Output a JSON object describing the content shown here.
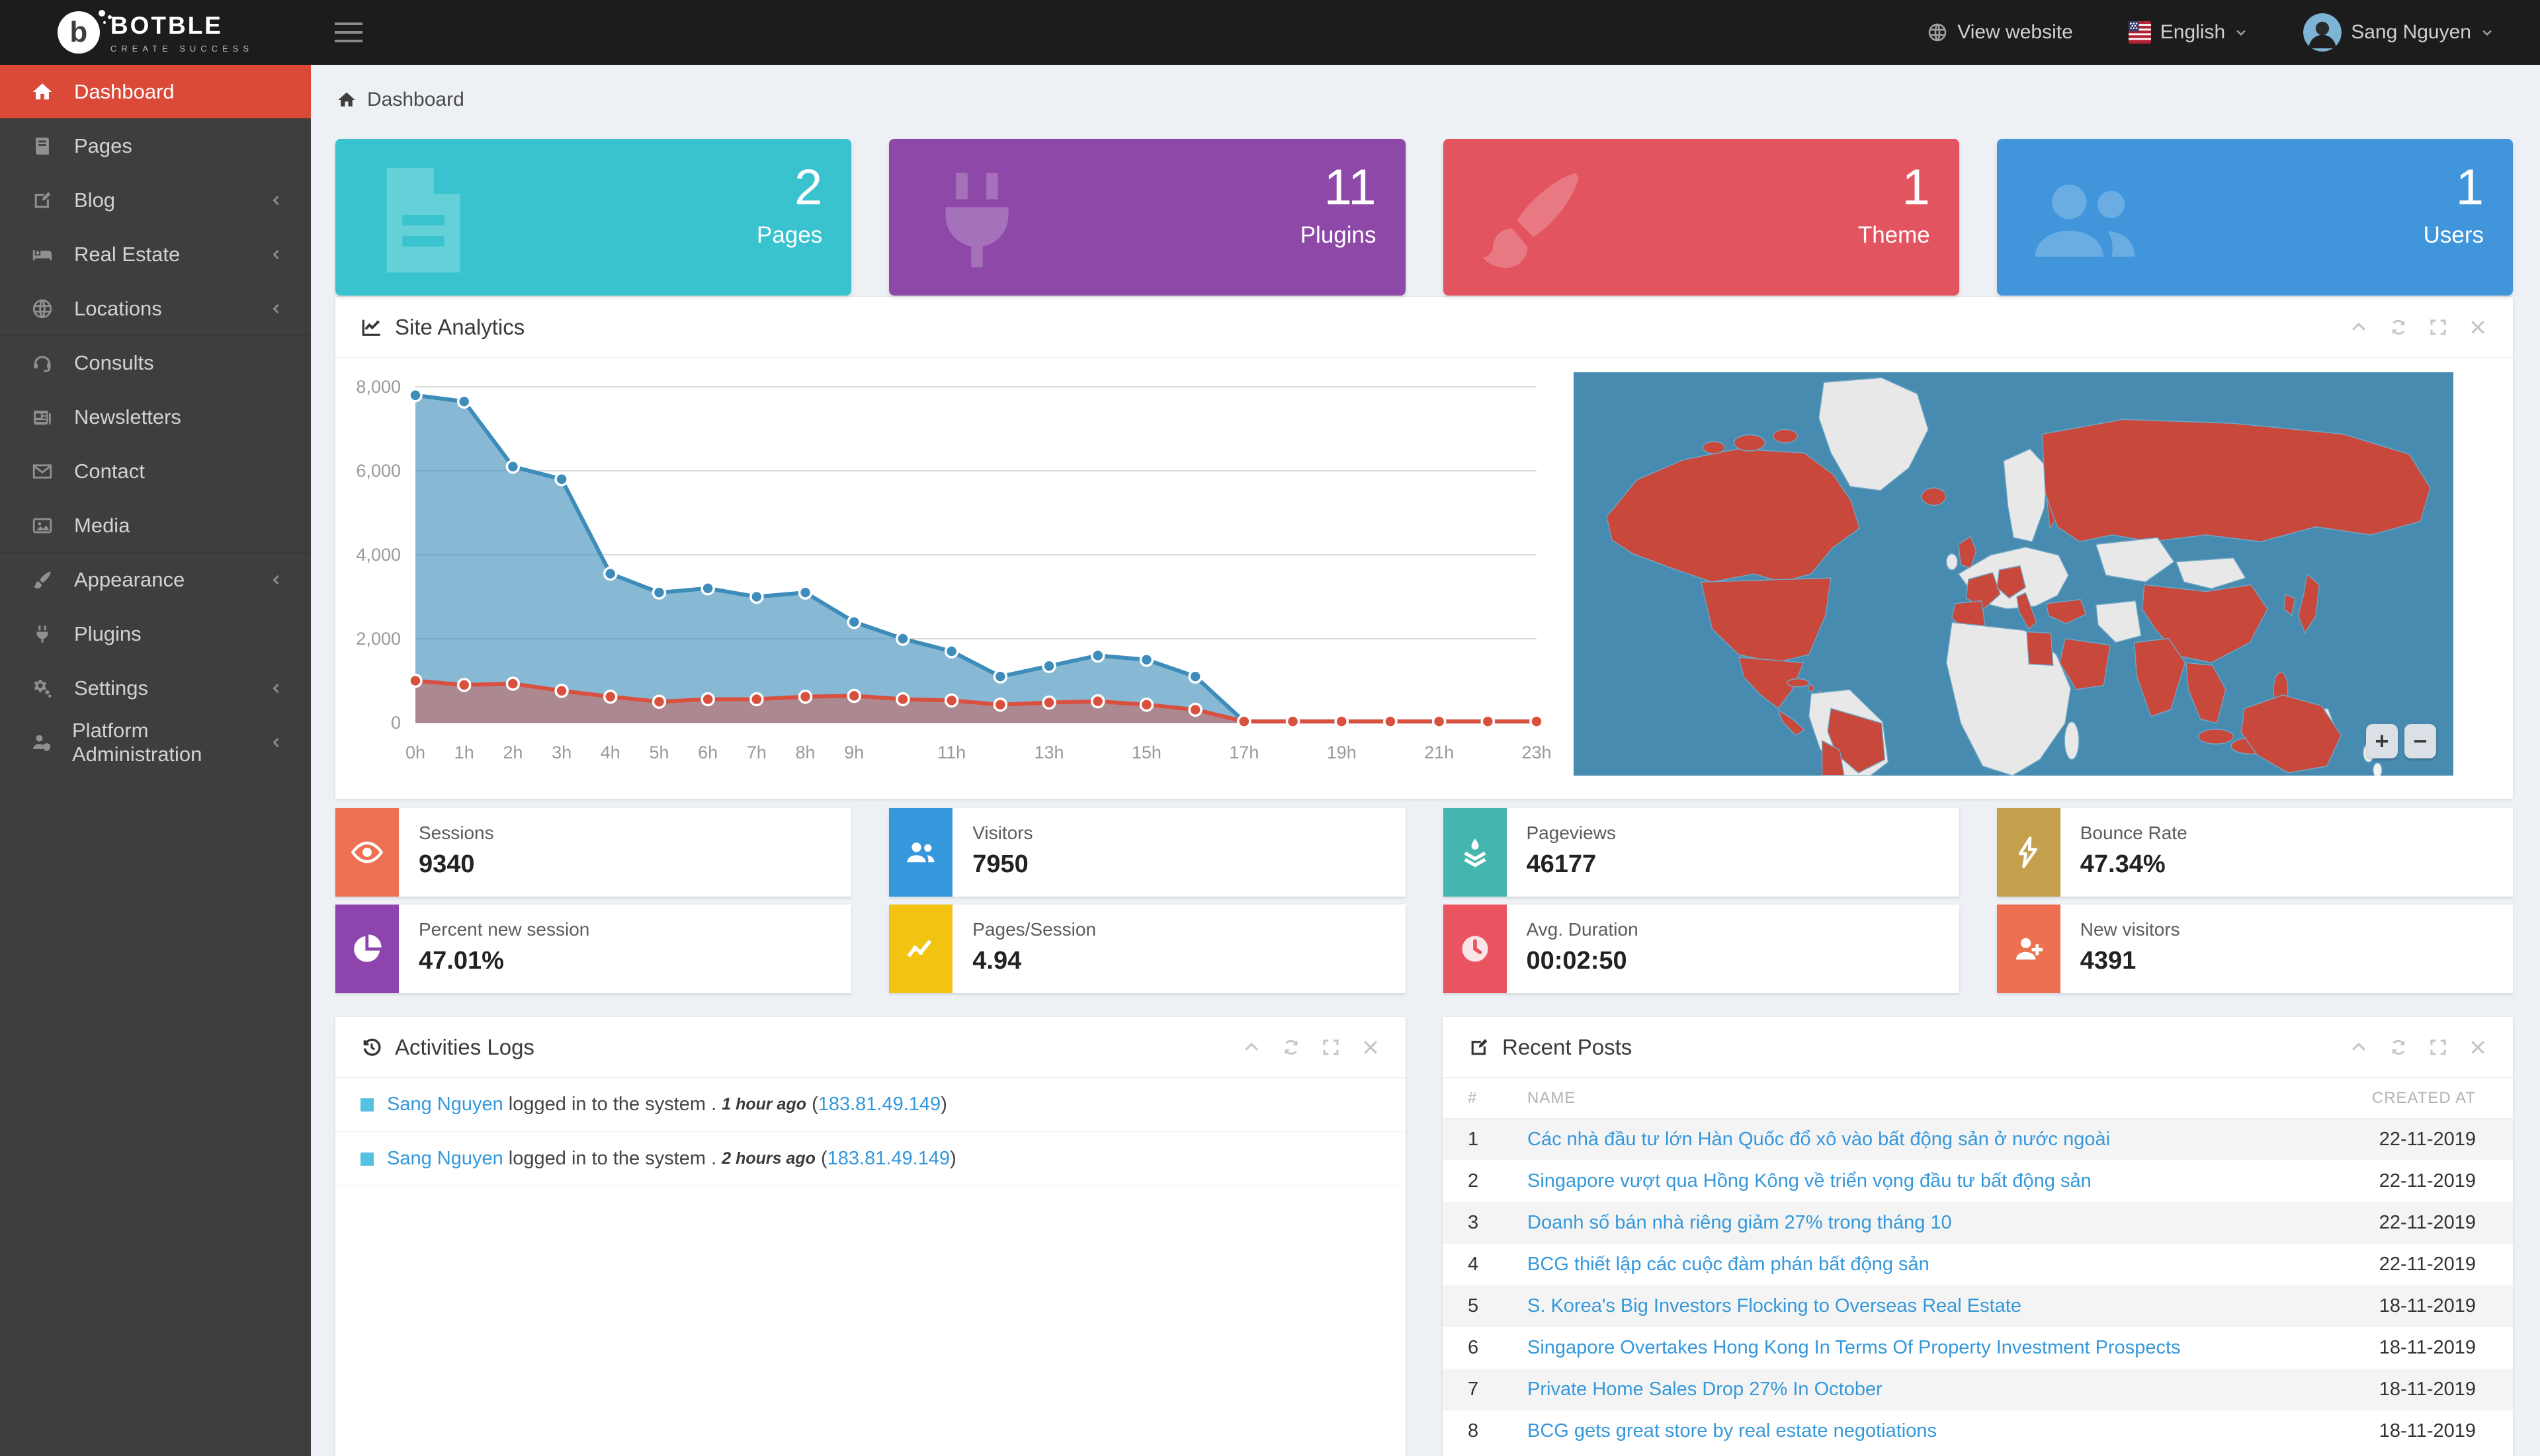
{
  "header": {
    "brand_name": "BOTBLE",
    "brand_tagline": "CREATE SUCCESS",
    "view_website": "View website",
    "language": "English",
    "user_name": "Sang Nguyen"
  },
  "sidebar": {
    "items": [
      {
        "label": "Dashboard",
        "icon": "home",
        "active": true,
        "has_children": false
      },
      {
        "label": "Pages",
        "icon": "book",
        "active": false,
        "has_children": false
      },
      {
        "label": "Blog",
        "icon": "pencil-square",
        "active": false,
        "has_children": true
      },
      {
        "label": "Real Estate",
        "icon": "bed",
        "active": false,
        "has_children": true
      },
      {
        "label": "Locations",
        "icon": "globe",
        "active": false,
        "has_children": true
      },
      {
        "label": "Consults",
        "icon": "headset",
        "active": false,
        "has_children": false
      },
      {
        "label": "Newsletters",
        "icon": "newspaper",
        "active": false,
        "has_children": false
      },
      {
        "label": "Contact",
        "icon": "envelope",
        "active": false,
        "has_children": false
      },
      {
        "label": "Media",
        "icon": "image",
        "active": false,
        "has_children": false
      },
      {
        "label": "Appearance",
        "icon": "brush",
        "active": false,
        "has_children": true
      },
      {
        "label": "Plugins",
        "icon": "plug",
        "active": false,
        "has_children": false
      },
      {
        "label": "Settings",
        "icon": "gears",
        "active": false,
        "has_children": true
      },
      {
        "label": "Platform Administration",
        "icon": "user-shield",
        "active": false,
        "has_children": true
      }
    ]
  },
  "breadcrumb": {
    "label": "Dashboard"
  },
  "summary_cards": [
    {
      "value": "2",
      "label": "Pages",
      "color": "#39c3ce",
      "icon": "file"
    },
    {
      "value": "11",
      "label": "Plugins",
      "color": "#8e49a8",
      "icon": "plug"
    },
    {
      "value": "1",
      "label": "Theme",
      "color": "#e25460",
      "icon": "brush"
    },
    {
      "value": "1",
      "label": "Users",
      "color": "#4196db",
      "icon": "users"
    }
  ],
  "panel_controls": [
    {
      "icon": "chevron-up"
    },
    {
      "icon": "refresh"
    },
    {
      "icon": "expand"
    },
    {
      "icon": "close"
    }
  ],
  "analytics": {
    "title": "Site Analytics",
    "chart_data": {
      "type": "area",
      "x": [
        0,
        1,
        2,
        3,
        4,
        5,
        6,
        7,
        8,
        9,
        10,
        11,
        12,
        13,
        14,
        15,
        16,
        17,
        18,
        19,
        20,
        21,
        22,
        23
      ],
      "x_ticks": [
        {
          "pos": 0,
          "label": "0h"
        },
        {
          "pos": 1,
          "label": "1h"
        },
        {
          "pos": 2,
          "label": "2h"
        },
        {
          "pos": 3,
          "label": "3h"
        },
        {
          "pos": 4,
          "label": "4h"
        },
        {
          "pos": 5,
          "label": "5h"
        },
        {
          "pos": 6,
          "label": "6h"
        },
        {
          "pos": 7,
          "label": "7h"
        },
        {
          "pos": 8,
          "label": "8h"
        },
        {
          "pos": 9,
          "label": "9h"
        },
        {
          "pos": 11,
          "label": "11h"
        },
        {
          "pos": 13,
          "label": "13h"
        },
        {
          "pos": 15,
          "label": "15h"
        },
        {
          "pos": 17,
          "label": "17h"
        },
        {
          "pos": 19,
          "label": "19h"
        },
        {
          "pos": 21,
          "label": "21h"
        },
        {
          "pos": 23,
          "label": "23h"
        }
      ],
      "ylim": [
        0,
        8000
      ],
      "yticks": [
        {
          "v": 0,
          "label": "0"
        },
        {
          "v": 2000,
          "label": "2,000"
        },
        {
          "v": 4000,
          "label": "4,000"
        },
        {
          "v": 6000,
          "label": "6,000"
        },
        {
          "v": 8000,
          "label": "8,000"
        }
      ],
      "grid": true,
      "legend": "none",
      "series": [
        {
          "name": "blue-series",
          "color": "#3d8cba",
          "fill": "rgba(61,140,186,0.62)",
          "values": [
            7800,
            7650,
            6100,
            5800,
            3550,
            3100,
            3200,
            3000,
            3100,
            2400,
            2000,
            1700,
            1100,
            1350,
            1600,
            1500,
            1100,
            30,
            30,
            30,
            30,
            30,
            30,
            30
          ]
        },
        {
          "name": "red-series",
          "color": "#d9503f",
          "fill": "rgba(217,80,63,0.45)",
          "values": [
            1000,
            900,
            930,
            760,
            620,
            500,
            560,
            560,
            620,
            640,
            560,
            530,
            430,
            480,
            510,
            430,
            310,
            30,
            30,
            30,
            30,
            30,
            30,
            30
          ]
        }
      ]
    },
    "map": {
      "zoom_in": "+",
      "zoom_out": "−",
      "ocean_color": "#478bb1",
      "country_color": "#e8e8e8",
      "highlight_color": "#c9483c"
    }
  },
  "stat_tiles": [
    {
      "label": "Sessions",
      "value": "9340",
      "color": "#ee7153",
      "icon": "eye"
    },
    {
      "label": "Visitors",
      "value": "7950",
      "color": "#3598dc",
      "icon": "users"
    },
    {
      "label": "Pageviews",
      "value": "46177",
      "color": "#45b6af",
      "icon": "funnel"
    },
    {
      "label": "Bounce Rate",
      "value": "47.34%",
      "color": "#c2a04c",
      "icon": "bolt"
    },
    {
      "label": "Percent new session",
      "value": "47.01%",
      "color": "#8e44ad",
      "icon": "pie"
    },
    {
      "label": "Pages/Session",
      "value": "4.94",
      "color": "#f2c311",
      "icon": "line-chart"
    },
    {
      "label": "Avg. Duration",
      "value": "00:02:50",
      "color": "#ea5460",
      "icon": "clock"
    },
    {
      "label": "New visitors",
      "value": "4391",
      "color": "#ed7150",
      "icon": "person-plus"
    }
  ],
  "activities": {
    "title": "Activities Logs",
    "entries": [
      {
        "user": "Sang Nguyen",
        "action": "logged in to the system",
        "separator": ".",
        "time": "1 hour ago",
        "ip": "183.81.49.149"
      },
      {
        "user": "Sang Nguyen",
        "action": "logged in to the system",
        "separator": ".",
        "time": "2 hours ago",
        "ip": "183.81.49.149"
      }
    ]
  },
  "recent_posts": {
    "title": "Recent Posts",
    "columns": [
      "#",
      "NAME",
      "CREATED AT"
    ],
    "rows": [
      {
        "num": "1",
        "name": "Các nhà đầu tư lớn Hàn Quốc đổ xô vào bất động sản ở nước ngoài",
        "date": "22-11-2019"
      },
      {
        "num": "2",
        "name": "Singapore vượt qua Hồng Kông về triển vọng đầu tư bất động sản",
        "date": "22-11-2019"
      },
      {
        "num": "3",
        "name": "Doanh số bán nhà riêng giảm 27% trong tháng 10",
        "date": "22-11-2019"
      },
      {
        "num": "4",
        "name": "BCG thiết lập các cuộc đàm phán bất động sản",
        "date": "22-11-2019"
      },
      {
        "num": "5",
        "name": "S. Korea's Big Investors Flocking to Overseas Real Estate",
        "date": "18-11-2019"
      },
      {
        "num": "6",
        "name": "Singapore Overtakes Hong Kong In Terms Of Property Investment Prospects",
        "date": "18-11-2019"
      },
      {
        "num": "7",
        "name": "Private Home Sales Drop 27% In October",
        "date": "18-11-2019"
      },
      {
        "num": "8",
        "name": "BCG gets great store by real estate negotiations",
        "date": "18-11-2019"
      }
    ]
  }
}
